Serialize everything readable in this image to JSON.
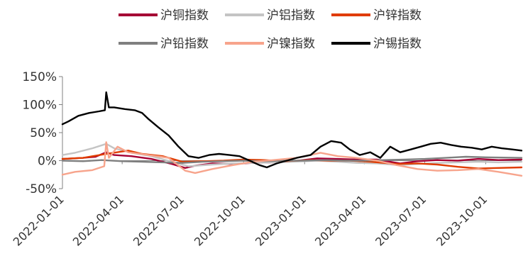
{
  "chart_data": {
    "type": "line",
    "x_type": "date",
    "x_ticks": [
      "2022-01-01",
      "2022-04-01",
      "2022-07-01",
      "2022-10-01",
      "2023-01-01",
      "2023-04-01",
      "2023-07-01",
      "2023-10-01"
    ],
    "xlim": [
      "2022-01-01",
      "2023-11-24"
    ],
    "ylim": [
      -0.5,
      1.5
    ],
    "y_ticks": [
      -0.5,
      0,
      0.5,
      1.0,
      1.5
    ],
    "y_tick_labels": [
      "-50%",
      "0%",
      "50%",
      "100%",
      "150%"
    ],
    "title": "",
    "xlabel": "",
    "ylabel": "",
    "grid": false,
    "legend_position": "top",
    "series": [
      {
        "name": "沪铜指数",
        "color": "#A50034",
        "points": [
          [
            "2022-01-01",
            0.03
          ],
          [
            "2022-02-01",
            0.05
          ],
          [
            "2022-02-20",
            0.07
          ],
          [
            "2022-03-08",
            0.15
          ],
          [
            "2022-03-20",
            0.1
          ],
          [
            "2022-04-15",
            0.08
          ],
          [
            "2022-05-15",
            0.03
          ],
          [
            "2022-06-15",
            -0.06
          ],
          [
            "2022-07-05",
            -0.13
          ],
          [
            "2022-07-20",
            -0.09
          ],
          [
            "2022-08-15",
            -0.05
          ],
          [
            "2022-09-15",
            -0.06
          ],
          [
            "2022-10-15",
            -0.04
          ],
          [
            "2022-11-15",
            -0.03
          ],
          [
            "2022-12-15",
            -0.01
          ],
          [
            "2023-01-20",
            0.04
          ],
          [
            "2023-02-20",
            0.03
          ],
          [
            "2023-03-20",
            0.02
          ],
          [
            "2023-04-20",
            0.02
          ],
          [
            "2023-05-25",
            -0.05
          ],
          [
            "2023-06-20",
            -0.01
          ],
          [
            "2023-07-20",
            0.01
          ],
          [
            "2023-08-20",
            0.0
          ],
          [
            "2023-09-20",
            0.03
          ],
          [
            "2023-10-20",
            0.01
          ],
          [
            "2023-11-24",
            0.02
          ]
        ]
      },
      {
        "name": "沪铝指数",
        "color": "#C4C4C4",
        "points": [
          [
            "2022-01-01",
            0.1
          ],
          [
            "2022-01-20",
            0.14
          ],
          [
            "2022-02-15",
            0.22
          ],
          [
            "2022-03-08",
            0.3
          ],
          [
            "2022-03-20",
            0.22
          ],
          [
            "2022-04-15",
            0.14
          ],
          [
            "2022-05-15",
            0.08
          ],
          [
            "2022-06-15",
            -0.02
          ],
          [
            "2022-07-10",
            -0.1
          ],
          [
            "2022-08-15",
            -0.07
          ],
          [
            "2022-09-15",
            -0.05
          ],
          [
            "2022-10-15",
            -0.04
          ],
          [
            "2022-11-15",
            -0.03
          ],
          [
            "2022-12-15",
            -0.02
          ],
          [
            "2023-01-20",
            0.0
          ],
          [
            "2023-02-20",
            -0.02
          ],
          [
            "2023-03-20",
            -0.04
          ],
          [
            "2023-04-20",
            -0.05
          ],
          [
            "2023-05-25",
            -0.08
          ],
          [
            "2023-06-20",
            -0.06
          ],
          [
            "2023-07-20",
            -0.04
          ],
          [
            "2023-08-20",
            -0.03
          ],
          [
            "2023-09-20",
            -0.02
          ],
          [
            "2023-10-20",
            -0.03
          ],
          [
            "2023-11-24",
            -0.02
          ]
        ]
      },
      {
        "name": "沪锌指数",
        "color": "#E03C00",
        "points": [
          [
            "2022-01-01",
            0.03
          ],
          [
            "2022-02-01",
            0.05
          ],
          [
            "2022-03-08",
            0.12
          ],
          [
            "2022-04-10",
            0.18
          ],
          [
            "2022-05-01",
            0.12
          ],
          [
            "2022-06-01",
            0.08
          ],
          [
            "2022-07-01",
            -0.02
          ],
          [
            "2022-08-01",
            -0.01
          ],
          [
            "2022-09-01",
            0.0
          ],
          [
            "2022-10-01",
            0.02
          ],
          [
            "2022-11-01",
            0.01
          ],
          [
            "2022-12-01",
            -0.01
          ],
          [
            "2023-01-10",
            0.01
          ],
          [
            "2023-02-10",
            0.0
          ],
          [
            "2023-03-10",
            0.0
          ],
          [
            "2023-04-10",
            -0.02
          ],
          [
            "2023-05-20",
            -0.06
          ],
          [
            "2023-06-20",
            -0.05
          ],
          [
            "2023-07-20",
            -0.07
          ],
          [
            "2023-08-20",
            -0.11
          ],
          [
            "2023-09-20",
            -0.14
          ],
          [
            "2023-10-20",
            -0.13
          ],
          [
            "2023-11-24",
            -0.12
          ]
        ]
      },
      {
        "name": "沪铅指数",
        "color": "#7F7F7F",
        "points": [
          [
            "2022-01-01",
            0.0
          ],
          [
            "2022-02-01",
            -0.01
          ],
          [
            "2022-03-01",
            0.01
          ],
          [
            "2022-04-01",
            -0.01
          ],
          [
            "2022-05-01",
            -0.02
          ],
          [
            "2022-06-01",
            -0.03
          ],
          [
            "2022-07-01",
            -0.04
          ],
          [
            "2022-08-01",
            -0.02
          ],
          [
            "2022-09-01",
            -0.01
          ],
          [
            "2022-10-01",
            0.0
          ],
          [
            "2022-11-01",
            -0.01
          ],
          [
            "2022-12-01",
            0.0
          ],
          [
            "2023-01-01",
            0.0
          ],
          [
            "2023-02-01",
            0.01
          ],
          [
            "2023-03-01",
            0.0
          ],
          [
            "2023-04-01",
            0.0
          ],
          [
            "2023-05-01",
            0.01
          ],
          [
            "2023-06-01",
            0.02
          ],
          [
            "2023-07-01",
            0.03
          ],
          [
            "2023-08-01",
            0.05
          ],
          [
            "2023-09-01",
            0.07
          ],
          [
            "2023-10-01",
            0.06
          ],
          [
            "2023-11-24",
            0.05
          ]
        ]
      },
      {
        "name": "沪镍指数",
        "color": "#F7A48C",
        "points": [
          [
            "2022-01-01",
            -0.25
          ],
          [
            "2022-01-20",
            -0.2
          ],
          [
            "2022-02-15",
            -0.17
          ],
          [
            "2022-03-05",
            -0.1
          ],
          [
            "2022-03-08",
            0.33
          ],
          [
            "2022-03-12",
            0.05
          ],
          [
            "2022-03-25",
            0.25
          ],
          [
            "2022-04-10",
            0.15
          ],
          [
            "2022-05-10",
            0.1
          ],
          [
            "2022-06-10",
            0.05
          ],
          [
            "2022-07-05",
            -0.18
          ],
          [
            "2022-07-20",
            -0.22
          ],
          [
            "2022-08-15",
            -0.15
          ],
          [
            "2022-09-15",
            -0.08
          ],
          [
            "2022-10-15",
            -0.02
          ],
          [
            "2022-11-15",
            0.01
          ],
          [
            "2022-12-20",
            0.05
          ],
          [
            "2023-01-25",
            0.14
          ],
          [
            "2023-02-20",
            0.08
          ],
          [
            "2023-03-20",
            0.05
          ],
          [
            "2023-04-20",
            0.0
          ],
          [
            "2023-05-20",
            -0.08
          ],
          [
            "2023-06-20",
            -0.15
          ],
          [
            "2023-07-20",
            -0.18
          ],
          [
            "2023-08-20",
            -0.17
          ],
          [
            "2023-09-20",
            -0.15
          ],
          [
            "2023-10-20",
            -0.2
          ],
          [
            "2023-11-24",
            -0.27
          ]
        ]
      },
      {
        "name": "沪锡指数",
        "color": "#000000",
        "points": [
          [
            "2022-01-01",
            0.65
          ],
          [
            "2022-01-10",
            0.7
          ],
          [
            "2022-01-25",
            0.8
          ],
          [
            "2022-02-10",
            0.85
          ],
          [
            "2022-02-25",
            0.88
          ],
          [
            "2022-03-06",
            0.9
          ],
          [
            "2022-03-08",
            1.22
          ],
          [
            "2022-03-12",
            0.95
          ],
          [
            "2022-03-20",
            0.95
          ],
          [
            "2022-04-05",
            0.92
          ],
          [
            "2022-04-20",
            0.9
          ],
          [
            "2022-05-01",
            0.85
          ],
          [
            "2022-05-10",
            0.75
          ],
          [
            "2022-05-25",
            0.6
          ],
          [
            "2022-06-10",
            0.45
          ],
          [
            "2022-06-25",
            0.25
          ],
          [
            "2022-07-10",
            0.08
          ],
          [
            "2022-07-25",
            0.05
          ],
          [
            "2022-08-10",
            0.1
          ],
          [
            "2022-08-25",
            0.12
          ],
          [
            "2022-09-10",
            0.1
          ],
          [
            "2022-09-25",
            0.08
          ],
          [
            "2022-10-10",
            0.0
          ],
          [
            "2022-10-25",
            -0.08
          ],
          [
            "2022-11-05",
            -0.12
          ],
          [
            "2022-11-20",
            -0.05
          ],
          [
            "2022-12-05",
            0.0
          ],
          [
            "2022-12-20",
            0.05
          ],
          [
            "2023-01-10",
            0.1
          ],
          [
            "2023-01-25",
            0.25
          ],
          [
            "2023-02-10",
            0.35
          ],
          [
            "2023-02-25",
            0.32
          ],
          [
            "2023-03-10",
            0.2
          ],
          [
            "2023-03-25",
            0.1
          ],
          [
            "2023-04-10",
            0.15
          ],
          [
            "2023-04-25",
            0.05
          ],
          [
            "2023-05-10",
            0.25
          ],
          [
            "2023-05-25",
            0.15
          ],
          [
            "2023-06-10",
            0.2
          ],
          [
            "2023-06-25",
            0.25
          ],
          [
            "2023-07-10",
            0.3
          ],
          [
            "2023-07-25",
            0.32
          ],
          [
            "2023-08-10",
            0.28
          ],
          [
            "2023-08-25",
            0.25
          ],
          [
            "2023-09-10",
            0.23
          ],
          [
            "2023-09-25",
            0.2
          ],
          [
            "2023-10-10",
            0.25
          ],
          [
            "2023-10-25",
            0.22
          ],
          [
            "2023-11-10",
            0.2
          ],
          [
            "2023-11-24",
            0.18
          ]
        ]
      }
    ]
  }
}
